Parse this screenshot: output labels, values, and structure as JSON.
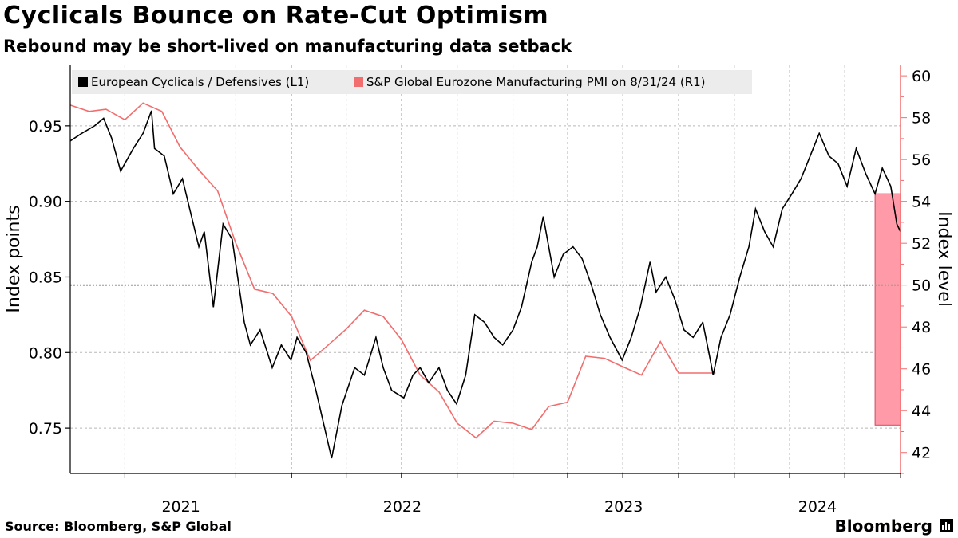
{
  "title": "Cyclicals Bounce on Rate-Cut Optimism",
  "subtitle": "Rebound may be short-lived on manufacturing data setback",
  "source": "Source: Bloomberg, S&P Global",
  "brand": "Bloomberg",
  "colors": {
    "series1": "#000000",
    "series2": "#f26d6d",
    "highlight": "#ff9aa8",
    "grid": "#b8b8b8",
    "right_axis": "#f26d6d",
    "legend_bg": "#ececec"
  },
  "chart_data": {
    "type": "line",
    "left_axis": {
      "label": "Index points",
      "ylim": [
        0.72,
        0.99
      ],
      "ticks": [
        "0.75",
        "0.80",
        "0.85",
        "0.90",
        "0.95"
      ],
      "tick_values": [
        0.75,
        0.8,
        0.85,
        0.9,
        0.95
      ]
    },
    "right_axis": {
      "label": "Index level",
      "ylim": [
        41,
        60.5
      ],
      "ticks": [
        "42",
        "44",
        "46",
        "48",
        "50",
        "52",
        "54",
        "56",
        "58",
        "60"
      ],
      "tick_values": [
        42,
        44,
        46,
        48,
        50,
        52,
        54,
        56,
        58,
        60
      ]
    },
    "x_axis": {
      "range": [
        "2021-01-01",
        "2024-10-01"
      ],
      "year_labels": [
        "2021",
        "2022",
        "2023",
        "2024"
      ]
    },
    "reference_line": {
      "axis": "right",
      "value": 50
    },
    "legend": {
      "position": "top-left"
    },
    "series": [
      {
        "name": "European Cyclicals / Defensives (L1)",
        "axis": "left",
        "points": [
          [
            "2021-01-01",
            0.94
          ],
          [
            "2021-01-20",
            0.945
          ],
          [
            "2021-02-10",
            0.95
          ],
          [
            "2021-02-25",
            0.955
          ],
          [
            "2021-03-10",
            0.942
          ],
          [
            "2021-03-25",
            0.92
          ],
          [
            "2021-04-15",
            0.935
          ],
          [
            "2021-05-01",
            0.945
          ],
          [
            "2021-05-15",
            0.96
          ],
          [
            "2021-05-20",
            0.935
          ],
          [
            "2021-06-05",
            0.93
          ],
          [
            "2021-06-20",
            0.905
          ],
          [
            "2021-07-05",
            0.915
          ],
          [
            "2021-07-20",
            0.89
          ],
          [
            "2021-08-01",
            0.87
          ],
          [
            "2021-08-10",
            0.88
          ],
          [
            "2021-08-25",
            0.83
          ],
          [
            "2021-09-10",
            0.885
          ],
          [
            "2021-09-25",
            0.875
          ],
          [
            "2021-10-15",
            0.82
          ],
          [
            "2021-10-25",
            0.805
          ],
          [
            "2021-11-10",
            0.815
          ],
          [
            "2021-11-30",
            0.79
          ],
          [
            "2021-12-15",
            0.805
          ],
          [
            "2021-12-31",
            0.795
          ],
          [
            "2022-01-10",
            0.81
          ],
          [
            "2022-01-25",
            0.8
          ],
          [
            "2022-02-10",
            0.775
          ],
          [
            "2022-03-08",
            0.73
          ],
          [
            "2022-03-25",
            0.765
          ],
          [
            "2022-04-15",
            0.79
          ],
          [
            "2022-05-01",
            0.785
          ],
          [
            "2022-05-20",
            0.81
          ],
          [
            "2022-06-01",
            0.79
          ],
          [
            "2022-06-15",
            0.775
          ],
          [
            "2022-07-05",
            0.77
          ],
          [
            "2022-07-20",
            0.785
          ],
          [
            "2022-08-01",
            0.79
          ],
          [
            "2022-08-15",
            0.78
          ],
          [
            "2022-09-01",
            0.79
          ],
          [
            "2022-09-15",
            0.775
          ],
          [
            "2022-09-30",
            0.766
          ],
          [
            "2022-10-15",
            0.785
          ],
          [
            "2022-10-30",
            0.825
          ],
          [
            "2022-11-15",
            0.82
          ],
          [
            "2022-12-01",
            0.81
          ],
          [
            "2022-12-15",
            0.805
          ],
          [
            "2023-01-01",
            0.815
          ],
          [
            "2023-01-15",
            0.83
          ],
          [
            "2023-02-01",
            0.86
          ],
          [
            "2023-02-10",
            0.87
          ],
          [
            "2023-02-20",
            0.89
          ],
          [
            "2023-03-10",
            0.85
          ],
          [
            "2023-03-25",
            0.865
          ],
          [
            "2023-04-10",
            0.87
          ],
          [
            "2023-04-25",
            0.862
          ],
          [
            "2023-05-10",
            0.845
          ],
          [
            "2023-05-25",
            0.825
          ],
          [
            "2023-06-10",
            0.81
          ],
          [
            "2023-06-30",
            0.795
          ],
          [
            "2023-07-15",
            0.81
          ],
          [
            "2023-07-30",
            0.83
          ],
          [
            "2023-08-15",
            0.86
          ],
          [
            "2023-08-25",
            0.84
          ],
          [
            "2023-09-10",
            0.85
          ],
          [
            "2023-09-25",
            0.835
          ],
          [
            "2023-10-10",
            0.815
          ],
          [
            "2023-10-25",
            0.81
          ],
          [
            "2023-11-10",
            0.82
          ],
          [
            "2023-11-20",
            0.8
          ],
          [
            "2023-11-27",
            0.785
          ],
          [
            "2023-12-10",
            0.81
          ],
          [
            "2023-12-25",
            0.825
          ],
          [
            "2024-01-10",
            0.85
          ],
          [
            "2024-01-25",
            0.87
          ],
          [
            "2024-02-05",
            0.895
          ],
          [
            "2024-02-20",
            0.88
          ],
          [
            "2024-03-05",
            0.87
          ],
          [
            "2024-03-20",
            0.895
          ],
          [
            "2024-04-05",
            0.905
          ],
          [
            "2024-04-20",
            0.915
          ],
          [
            "2024-05-05",
            0.93
          ],
          [
            "2024-05-20",
            0.945
          ],
          [
            "2024-06-05",
            0.93
          ],
          [
            "2024-06-20",
            0.925
          ],
          [
            "2024-07-05",
            0.91
          ],
          [
            "2024-07-20",
            0.935
          ],
          [
            "2024-08-05",
            0.918
          ],
          [
            "2024-08-20",
            0.905
          ],
          [
            "2024-09-01",
            0.922
          ],
          [
            "2024-09-15",
            0.91
          ],
          [
            "2024-09-25",
            0.885
          ],
          [
            "2024-10-01",
            0.88
          ]
        ]
      },
      {
        "name": "S&P Global Eurozone Manufacturing PMI on 8/31/24 (R1)",
        "axis": "right",
        "points": [
          [
            "2021-01-01",
            58.6
          ],
          [
            "2021-02-01",
            58.3
          ],
          [
            "2021-03-01",
            58.4
          ],
          [
            "2021-04-01",
            57.9
          ],
          [
            "2021-05-01",
            58.7
          ],
          [
            "2021-06-01",
            58.3
          ],
          [
            "2021-07-01",
            56.6
          ],
          [
            "2021-08-01",
            55.5
          ],
          [
            "2021-09-01",
            54.5
          ],
          [
            "2021-10-01",
            52.0
          ],
          [
            "2021-11-01",
            49.8
          ],
          [
            "2021-12-01",
            49.6
          ],
          [
            "2022-01-01",
            48.5
          ],
          [
            "2022-02-01",
            46.4
          ],
          [
            "2022-03-01",
            47.1
          ],
          [
            "2022-04-01",
            47.9
          ],
          [
            "2022-05-01",
            48.8
          ],
          [
            "2022-06-01",
            48.5
          ],
          [
            "2022-07-01",
            47.4
          ],
          [
            "2022-08-01",
            45.7
          ],
          [
            "2022-09-01",
            44.9
          ],
          [
            "2022-10-01",
            43.4
          ],
          [
            "2022-11-01",
            42.7
          ],
          [
            "2022-12-01",
            43.5
          ],
          [
            "2023-01-01",
            43.4
          ],
          [
            "2023-02-01",
            43.1
          ],
          [
            "2023-03-01",
            44.2
          ],
          [
            "2023-04-01",
            44.4
          ],
          [
            "2023-05-01",
            46.6
          ],
          [
            "2023-06-01",
            46.5
          ],
          [
            "2023-07-01",
            46.1
          ],
          [
            "2023-08-01",
            45.7
          ],
          [
            "2023-09-01",
            47.3
          ],
          [
            "2023-10-01",
            45.8
          ],
          [
            "2023-11-01",
            45.8
          ],
          [
            "2023-12-01",
            45.8
          ]
        ]
      }
    ]
  }
}
